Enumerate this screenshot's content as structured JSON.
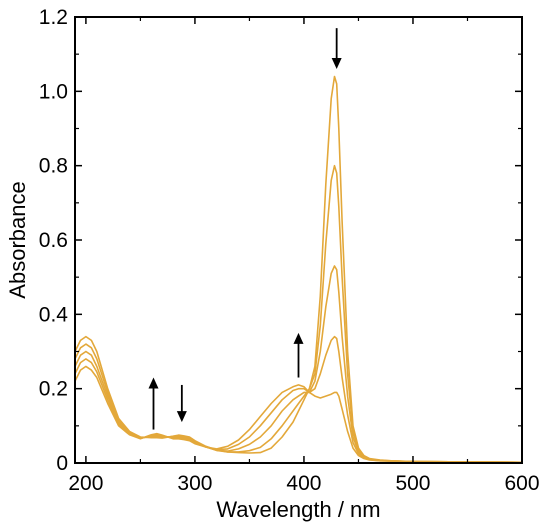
{
  "chart_data": {
    "type": "line",
    "xlabel": "Wavelength / nm",
    "ylabel": "Absorbance",
    "xlim": [
      190,
      600
    ],
    "ylim": [
      0,
      1.2
    ],
    "x_ticks": [
      "200",
      "300",
      "400",
      "500",
      "600"
    ],
    "y_ticks": [
      "0",
      "0.2",
      "0.4",
      "0.6",
      "0.8",
      "1.0",
      "1.2"
    ],
    "grid": false,
    "line_color": "#E3A83A",
    "series": [
      {
        "x": [
          190,
          195,
          200,
          205,
          210,
          220,
          230,
          240,
          250,
          260,
          265,
          270,
          280,
          285,
          290,
          295,
          300,
          310,
          320,
          330,
          340,
          350,
          360,
          370,
          380,
          390,
          395,
          400,
          405,
          410,
          415,
          420,
          425,
          428,
          430,
          432,
          435,
          440,
          445,
          450,
          455,
          460,
          470,
          480,
          500,
          550,
          600
        ],
        "values": [
          0.3,
          0.33,
          0.34,
          0.33,
          0.3,
          0.2,
          0.12,
          0.085,
          0.07,
          0.068,
          0.068,
          0.067,
          0.072,
          0.075,
          0.073,
          0.07,
          0.06,
          0.045,
          0.035,
          0.03,
          0.028,
          0.027,
          0.028,
          0.04,
          0.07,
          0.11,
          0.14,
          0.17,
          0.2,
          0.26,
          0.45,
          0.75,
          0.98,
          1.04,
          1.02,
          0.9,
          0.65,
          0.3,
          0.1,
          0.04,
          0.02,
          0.012,
          0.008,
          0.006,
          0.004,
          0.003,
          0.002
        ]
      },
      {
        "x": [
          190,
          195,
          200,
          205,
          210,
          220,
          230,
          240,
          250,
          260,
          265,
          270,
          280,
          285,
          290,
          295,
          300,
          310,
          320,
          330,
          340,
          350,
          360,
          370,
          380,
          390,
          395,
          400,
          405,
          410,
          415,
          420,
          425,
          428,
          430,
          432,
          435,
          440,
          445,
          450,
          455,
          460,
          470,
          480,
          500,
          550,
          600
        ],
        "values": [
          0.28,
          0.31,
          0.32,
          0.31,
          0.28,
          0.19,
          0.115,
          0.082,
          0.068,
          0.07,
          0.07,
          0.069,
          0.071,
          0.073,
          0.071,
          0.068,
          0.058,
          0.044,
          0.034,
          0.03,
          0.03,
          0.033,
          0.042,
          0.065,
          0.1,
          0.14,
          0.16,
          0.18,
          0.2,
          0.24,
          0.37,
          0.59,
          0.76,
          0.8,
          0.78,
          0.69,
          0.5,
          0.24,
          0.085,
          0.035,
          0.018,
          0.011,
          0.007,
          0.006,
          0.004,
          0.003,
          0.002
        ]
      },
      {
        "x": [
          190,
          195,
          200,
          205,
          210,
          220,
          230,
          240,
          250,
          260,
          265,
          270,
          280,
          285,
          290,
          295,
          300,
          310,
          320,
          330,
          340,
          350,
          360,
          370,
          380,
          390,
          395,
          400,
          405,
          410,
          415,
          420,
          425,
          428,
          430,
          432,
          435,
          440,
          445,
          450,
          455,
          460,
          470,
          480,
          500,
          550,
          600
        ],
        "values": [
          0.26,
          0.29,
          0.3,
          0.29,
          0.26,
          0.18,
          0.11,
          0.08,
          0.067,
          0.072,
          0.073,
          0.071,
          0.069,
          0.071,
          0.069,
          0.066,
          0.056,
          0.043,
          0.034,
          0.032,
          0.038,
          0.05,
          0.07,
          0.1,
          0.14,
          0.17,
          0.18,
          0.19,
          0.19,
          0.22,
          0.3,
          0.42,
          0.51,
          0.53,
          0.52,
          0.46,
          0.34,
          0.18,
          0.07,
          0.03,
          0.016,
          0.01,
          0.007,
          0.005,
          0.004,
          0.003,
          0.002
        ]
      },
      {
        "x": [
          190,
          195,
          200,
          205,
          210,
          220,
          230,
          240,
          250,
          260,
          265,
          270,
          280,
          285,
          290,
          295,
          300,
          310,
          320,
          330,
          340,
          350,
          360,
          370,
          380,
          390,
          395,
          400,
          405,
          410,
          415,
          420,
          425,
          428,
          430,
          432,
          435,
          440,
          445,
          450,
          455,
          460,
          470,
          480,
          500,
          550,
          600
        ],
        "values": [
          0.24,
          0.27,
          0.28,
          0.27,
          0.245,
          0.17,
          0.105,
          0.078,
          0.066,
          0.074,
          0.076,
          0.073,
          0.067,
          0.068,
          0.066,
          0.063,
          0.054,
          0.043,
          0.036,
          0.038,
          0.05,
          0.07,
          0.1,
          0.135,
          0.17,
          0.195,
          0.2,
          0.2,
          0.19,
          0.2,
          0.24,
          0.29,
          0.33,
          0.34,
          0.335,
          0.3,
          0.23,
          0.13,
          0.055,
          0.025,
          0.014,
          0.009,
          0.006,
          0.005,
          0.004,
          0.003,
          0.002
        ]
      },
      {
        "x": [
          190,
          195,
          200,
          205,
          210,
          220,
          230,
          240,
          250,
          260,
          265,
          270,
          280,
          285,
          290,
          295,
          300,
          310,
          320,
          330,
          340,
          350,
          360,
          370,
          380,
          390,
          395,
          400,
          405,
          410,
          415,
          420,
          425,
          428,
          430,
          432,
          435,
          440,
          445,
          450,
          455,
          460,
          470,
          480,
          500,
          550,
          600
        ],
        "values": [
          0.22,
          0.25,
          0.26,
          0.25,
          0.23,
          0.16,
          0.1,
          0.076,
          0.065,
          0.076,
          0.079,
          0.075,
          0.065,
          0.065,
          0.063,
          0.06,
          0.052,
          0.043,
          0.038,
          0.045,
          0.062,
          0.09,
          0.125,
          0.16,
          0.19,
          0.205,
          0.21,
          0.205,
          0.19,
          0.18,
          0.175,
          0.18,
          0.185,
          0.19,
          0.19,
          0.18,
          0.145,
          0.085,
          0.04,
          0.02,
          0.012,
          0.008,
          0.006,
          0.005,
          0.004,
          0.003,
          0.002
        ]
      }
    ],
    "annotations": [
      {
        "type": "arrow",
        "direction": "down",
        "x": 430,
        "y_from": 1.17,
        "y_to": 1.06
      },
      {
        "type": "arrow",
        "direction": "up",
        "x": 395,
        "y_from": 0.23,
        "y_to": 0.35
      },
      {
        "type": "arrow",
        "direction": "up",
        "x": 262,
        "y_from": 0.09,
        "y_to": 0.23
      },
      {
        "type": "arrow",
        "direction": "down",
        "x": 288,
        "y_from": 0.21,
        "y_to": 0.11
      }
    ]
  }
}
